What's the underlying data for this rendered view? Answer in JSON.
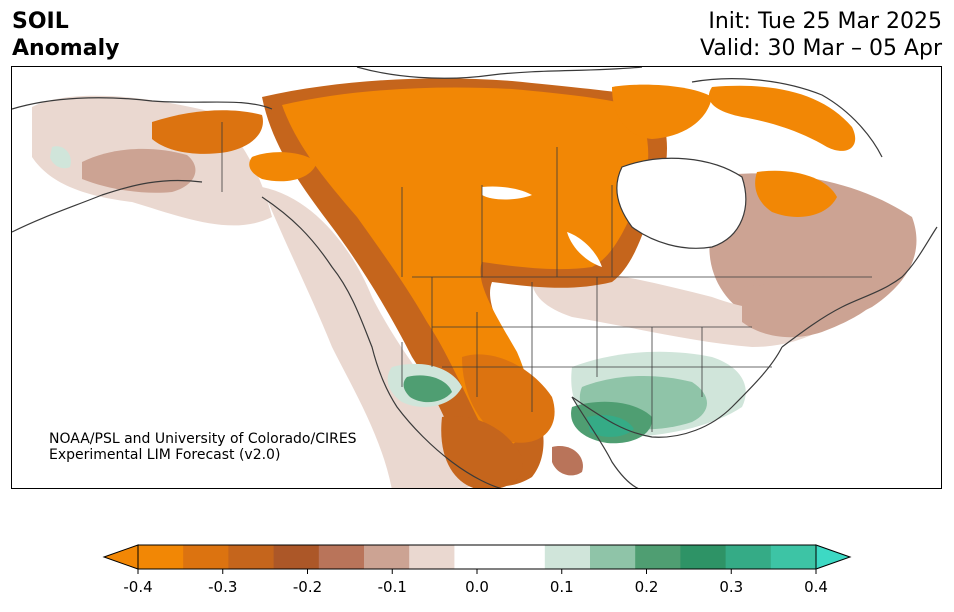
{
  "header": {
    "title_line1": "SOIL",
    "title_line2": "Anomaly",
    "init": "Init: Tue 25 Mar 2025",
    "valid": "Valid: 30 Mar – 05 Apr"
  },
  "credit": {
    "line1": "NOAA/PSL and University of Colorado/CIRES",
    "line2": "Experimental LIM Forecast (v2.0)"
  },
  "colorbar": {
    "ticks": [
      "-0.4",
      "-0.3",
      "-0.2",
      "-0.1",
      "0.0",
      "0.1",
      "0.2",
      "0.3",
      "0.4"
    ],
    "under_color": "#f28705",
    "over_color": "#3dd9c4",
    "bins": [
      "#f28705",
      "#dc7310",
      "#c5651c",
      "#ac5728",
      "#b9745a",
      "#cca393",
      "#ead8d0",
      "#ffffff",
      "#ffffff",
      "#d0e5da",
      "#8fc4a8",
      "#4f9e72",
      "#2e9366",
      "#35ab86",
      "#3dc4a5"
    ]
  },
  "map_colors": {
    "strong_dry": "#f28705",
    "dry_2": "#dc7310",
    "dry_3": "#c5651c",
    "dry_4": "#ac5728",
    "mod_dry": "#b9745a",
    "light_dry": "#cca393",
    "faint_dry": "#ead8d0",
    "faint_wet": "#d0e5da",
    "light_wet": "#8fc4a8",
    "mod_wet": "#4f9e72",
    "strong_wet": "#35ab86"
  }
}
